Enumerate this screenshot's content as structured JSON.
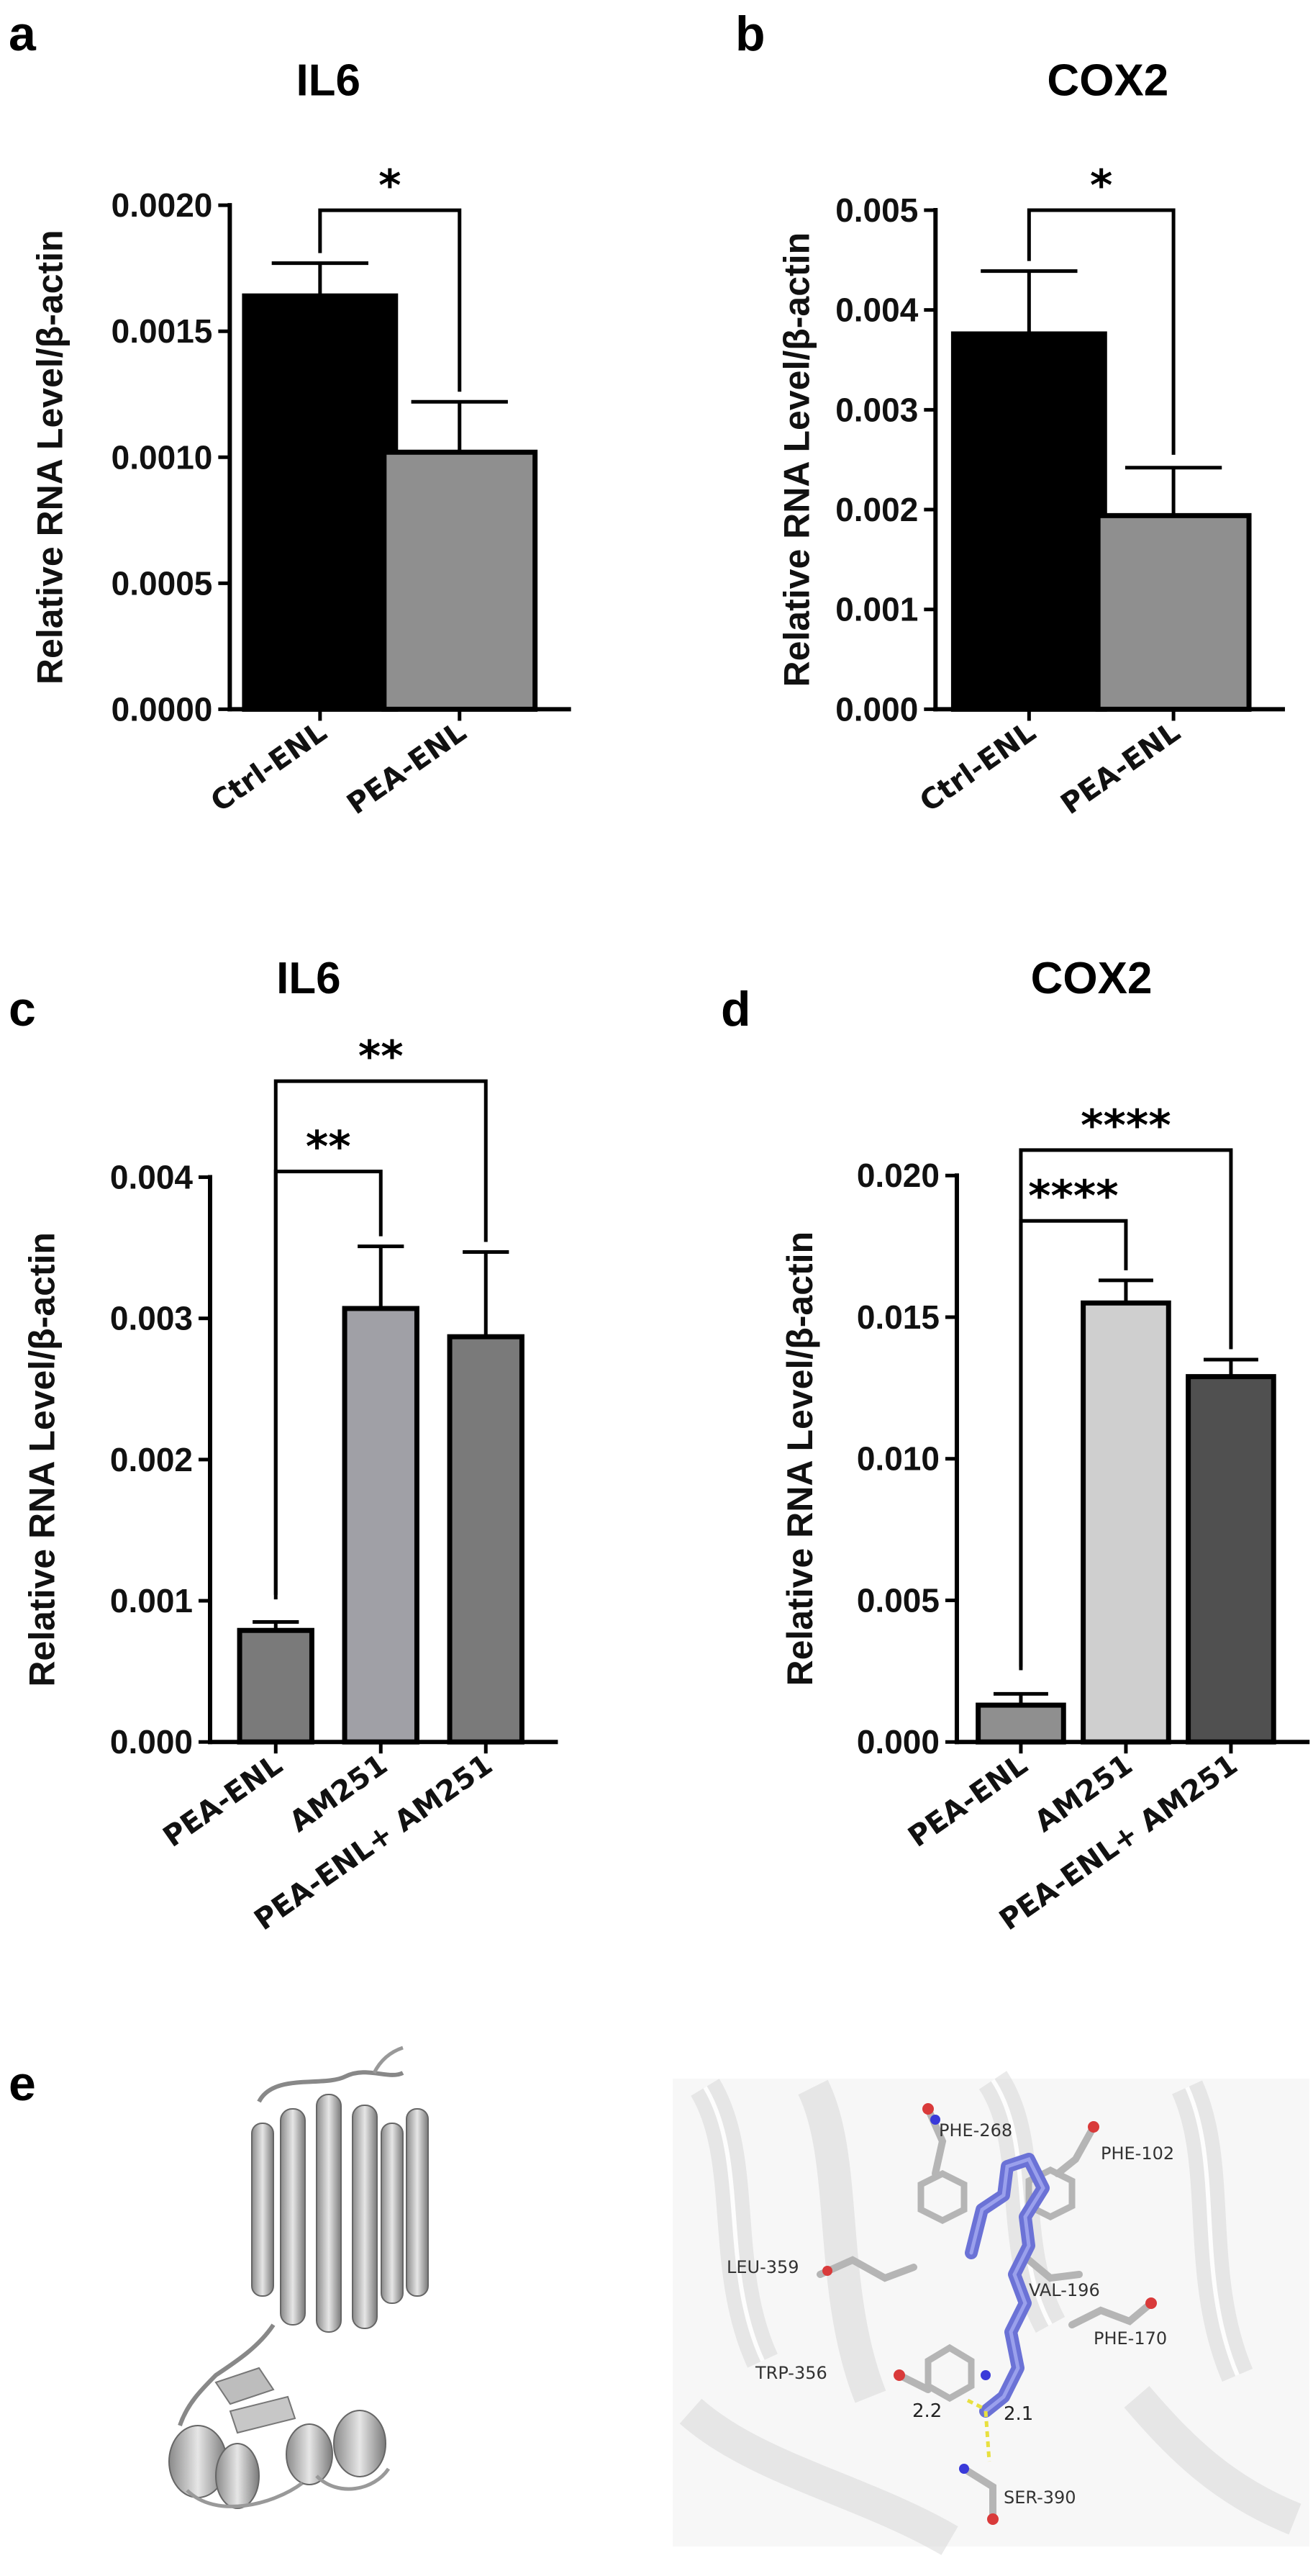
{
  "colors": {
    "black": "#000000",
    "gray": "#8f8f8f",
    "light_gray": "#cfcfcf",
    "mid_gray": "#7a7a7a",
    "dark_gray": "#505050",
    "ligand": "#6b72d6"
  },
  "chart_data": [
    {
      "panel": "a",
      "type": "bar",
      "title": "IL6",
      "ylabel": "Relative RNA Level/β-actin",
      "xlabel": "",
      "categories": [
        "Ctrl-ENL",
        "PEA-ENL"
      ],
      "values": [
        0.00164,
        0.00102
      ],
      "errors": [
        0.00013,
        0.0002
      ],
      "bar_colors": [
        "#000000",
        "#8f8f8f"
      ],
      "ylim": [
        0,
        0.002
      ],
      "yticks": [
        0,
        0.0005,
        0.001,
        0.0015,
        0.002
      ],
      "ytick_labels": [
        "0.0000",
        "0.0005",
        "0.0010",
        "0.0015",
        "0.0020"
      ],
      "significance": [
        {
          "from": 0,
          "to": 1,
          "label": "*",
          "y": 0.00198
        }
      ]
    },
    {
      "panel": "b",
      "type": "bar",
      "title": "COX2",
      "ylabel": "Relative RNA Level/β-actin",
      "xlabel": "",
      "categories": [
        "Ctrl-ENL",
        "PEA-ENL"
      ],
      "values": [
        0.00376,
        0.00194
      ],
      "errors": [
        0.00063,
        0.00048
      ],
      "bar_colors": [
        "#000000",
        "#8f8f8f"
      ],
      "ylim": [
        0,
        0.005
      ],
      "yticks": [
        0,
        0.001,
        0.002,
        0.003,
        0.004,
        0.005
      ],
      "ytick_labels": [
        "0.000",
        "0.001",
        "0.002",
        "0.003",
        "0.004",
        "0.005"
      ],
      "significance": [
        {
          "from": 0,
          "to": 1,
          "label": "*",
          "y": 0.005
        }
      ]
    },
    {
      "panel": "c",
      "type": "bar",
      "title": "IL6",
      "ylabel": "Relative RNA Level/β-actin",
      "xlabel": "",
      "categories": [
        "PEA-ENL",
        "AM251",
        "PEA-ENL+ AM251"
      ],
      "values": [
        0.00079,
        0.00307,
        0.00287
      ],
      "errors": [
        6e-05,
        0.00044,
        0.0006
      ],
      "bar_colors": [
        "#7a7a7a",
        "#a0a0a6",
        "#7a7a7a"
      ],
      "ylim": [
        0,
        0.004
      ],
      "yticks": [
        0,
        0.001,
        0.002,
        0.003,
        0.004
      ],
      "ytick_labels": [
        "0.000",
        "0.001",
        "0.002",
        "0.003",
        "0.004"
      ],
      "significance": [
        {
          "from": 0,
          "to": 1,
          "label": "**",
          "y": 0.00404
        },
        {
          "from": 0,
          "to": 2,
          "label": "**",
          "y": 0.00468
        }
      ]
    },
    {
      "panel": "d",
      "type": "bar",
      "title": "COX2",
      "ylabel": "Relative RNA Level/β-actin",
      "xlabel": "",
      "categories": [
        "PEA-ENL",
        "AM251",
        "PEA-ENL+ AM251"
      ],
      "values": [
        0.0013,
        0.0155,
        0.0129
      ],
      "errors": [
        0.0004,
        0.0008,
        0.0006
      ],
      "bar_colors": [
        "#8f8f8f",
        "#cfcfcf",
        "#505050"
      ],
      "ylim": [
        0,
        0.02
      ],
      "yticks": [
        0,
        0.005,
        0.01,
        0.015,
        0.02
      ],
      "ytick_labels": [
        "0.000",
        "0.005",
        "0.010",
        "0.015",
        "0.020"
      ],
      "significance": [
        {
          "from": 0,
          "to": 1,
          "label": "****",
          "y": 0.0184
        },
        {
          "from": 0,
          "to": 2,
          "label": "****",
          "y": 0.0209
        }
      ]
    }
  ],
  "panel_e": {
    "letter": "e",
    "residues": [
      "PHE-268",
      "PHE-102",
      "LEU-359",
      "VAL-196",
      "PHE-170",
      "TRP-356",
      "SER-390"
    ],
    "distances": [
      "2.2",
      "2.1"
    ]
  }
}
